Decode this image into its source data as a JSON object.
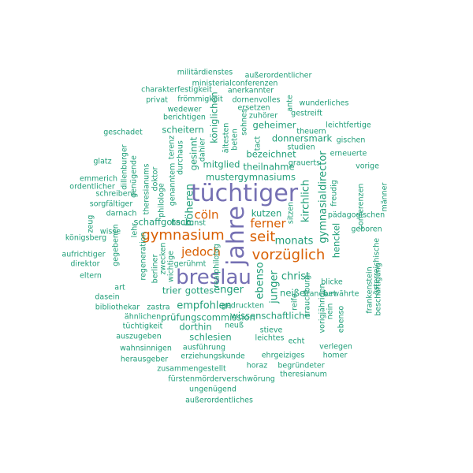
{
  "colors": {
    "small": "#1f9e78",
    "medium": "#d95f02",
    "large": "#7570b3"
  },
  "words": [
    "militärdienstes",
    "außerordentlicher",
    "ministerialconferenzen",
    "charakterfestigkeit",
    "anerkannter",
    "privat",
    "frömmigkeit",
    "dornenvolles",
    "wunderliches",
    "gediegenes",
    "wedewer",
    "ersetzen",
    "gestreift",
    "berichtigen",
    "zuhörer",
    "geschadet",
    "leichtfertige",
    "theuern",
    "gischen",
    "glatz",
    "studien",
    "erneuerte",
    "vorige",
    "emmerich",
    "ordentlicher",
    "schreibens",
    "sorgfältiger",
    "darnach",
    "wisse",
    "königsberg",
    "aufrichtiger",
    "direktor",
    "eltern",
    "geboren",
    "frankenstein",
    "beschäftigung",
    "bibliothekar",
    "ähnlichen",
    "tüchtigkeit",
    "auszugeben",
    "wahnsinnigen",
    "herausgeber",
    "zusammengestellt",
    "fürstenmörderverschwörung",
    "ungenügend",
    "außerordentliches",
    "österreichische",
    "ausführung",
    "erziehungskunde",
    "ehrgeiziges",
    "horaz",
    "begründeter",
    "theresianum",
    "homer",
    "verlegen",
    "echt",
    "leichtes",
    "stieve",
    "wissenschaftliche",
    "prüfungscommission",
    "schlesien",
    "dorthin",
    "empfohlen",
    "neuß",
    "männer",
    "gedruckten",
    "enger",
    "gottes",
    "trier",
    "zastra",
    "dasein",
    "art",
    "christ",
    "neiße",
    "bewährte",
    "tüchtiger",
    "jahre",
    "breslau",
    "gymnasium",
    "seit",
    "vorzüglich",
    "ferner",
    "jedoch",
    "cöln",
    "monats",
    "kirchlich",
    "höheren",
    "geheimer",
    "donnersmark",
    "bezeichnet",
    "theilnahme",
    "mustergymnasiums",
    "mitglied",
    "scheitern",
    "schaffgotsch",
    "kutzen",
    "gymnasialdirector",
    "ebenso",
    "junger",
    "pädagogischen",
    "henckel",
    "francfurt",
    "freudig",
    "blicke",
    "vorigjährigen",
    "nein",
    "ebenso",
    "regeneration",
    "berliner",
    "wichtige",
    "philologe",
    "theresianums",
    "lehr",
    "zeug",
    "gegebenen",
    "genanntem",
    "dillenburger",
    "genügende",
    "doktor",
    "zwecken",
    "terenz",
    "gesinnt",
    "durchaus",
    "dahier",
    "königlichen",
    "ältesten",
    "beten",
    "tact",
    "sohnes",
    "ante",
    "sitzen",
    "grauerts",
    "reife",
    "trauchburg",
    "gerühmt",
    "baukunst",
    "conferenzen",
    "realphilolog",
    "direction",
    "religiöses",
    "preußen",
    "rühmen",
    "bedeutendsten",
    "aspiranten",
    "stammend",
    "beantworten",
    "ritter",
    "unentbehrlich",
    "philosophie",
    "v",
    "lo",
    "allen"
  ]
}
